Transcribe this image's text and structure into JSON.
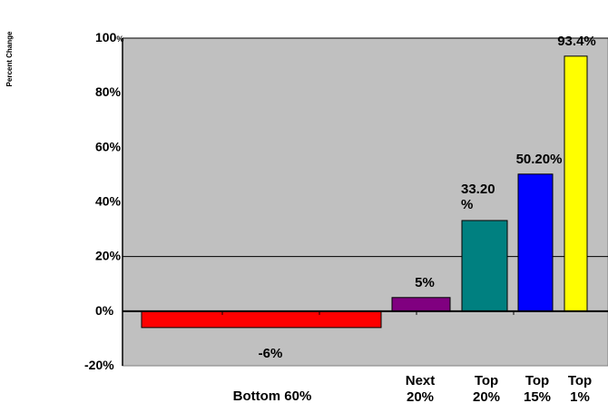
{
  "chart_data": {
    "type": "bar",
    "ylabel": "Percent Change",
    "ylim": [
      -20,
      100
    ],
    "yticks": [
      {
        "value": 100,
        "label": "100%"
      },
      {
        "value": 80,
        "label": "80%"
      },
      {
        "value": 60,
        "label": "60%"
      },
      {
        "value": 40,
        "label": "40%"
      },
      {
        "value": 20,
        "label": "20%"
      },
      {
        "value": 0,
        "label": "0%"
      },
      {
        "value": -20,
        "label": "-20%"
      }
    ],
    "gridlines": [
      100,
      20
    ],
    "categories": [
      [
        "Bottom 60%"
      ],
      [
        "Next",
        "20%"
      ],
      [
        "Top",
        "20%"
      ],
      [
        "Top",
        "15%"
      ],
      [
        "Top",
        "1%"
      ]
    ],
    "values": [
      -6,
      5,
      33.2,
      50.2,
      93.4
    ],
    "data_labels": [
      [
        "-6%"
      ],
      [
        "5%"
      ],
      [
        "33.20",
        "%"
      ],
      [
        "50.20%"
      ],
      [
        "93.4%"
      ]
    ],
    "colors": [
      "#ff0000",
      "#800080",
      "#008080",
      "#0000ff",
      "#ffff00"
    ],
    "plot_background": "#c0c0c0"
  }
}
